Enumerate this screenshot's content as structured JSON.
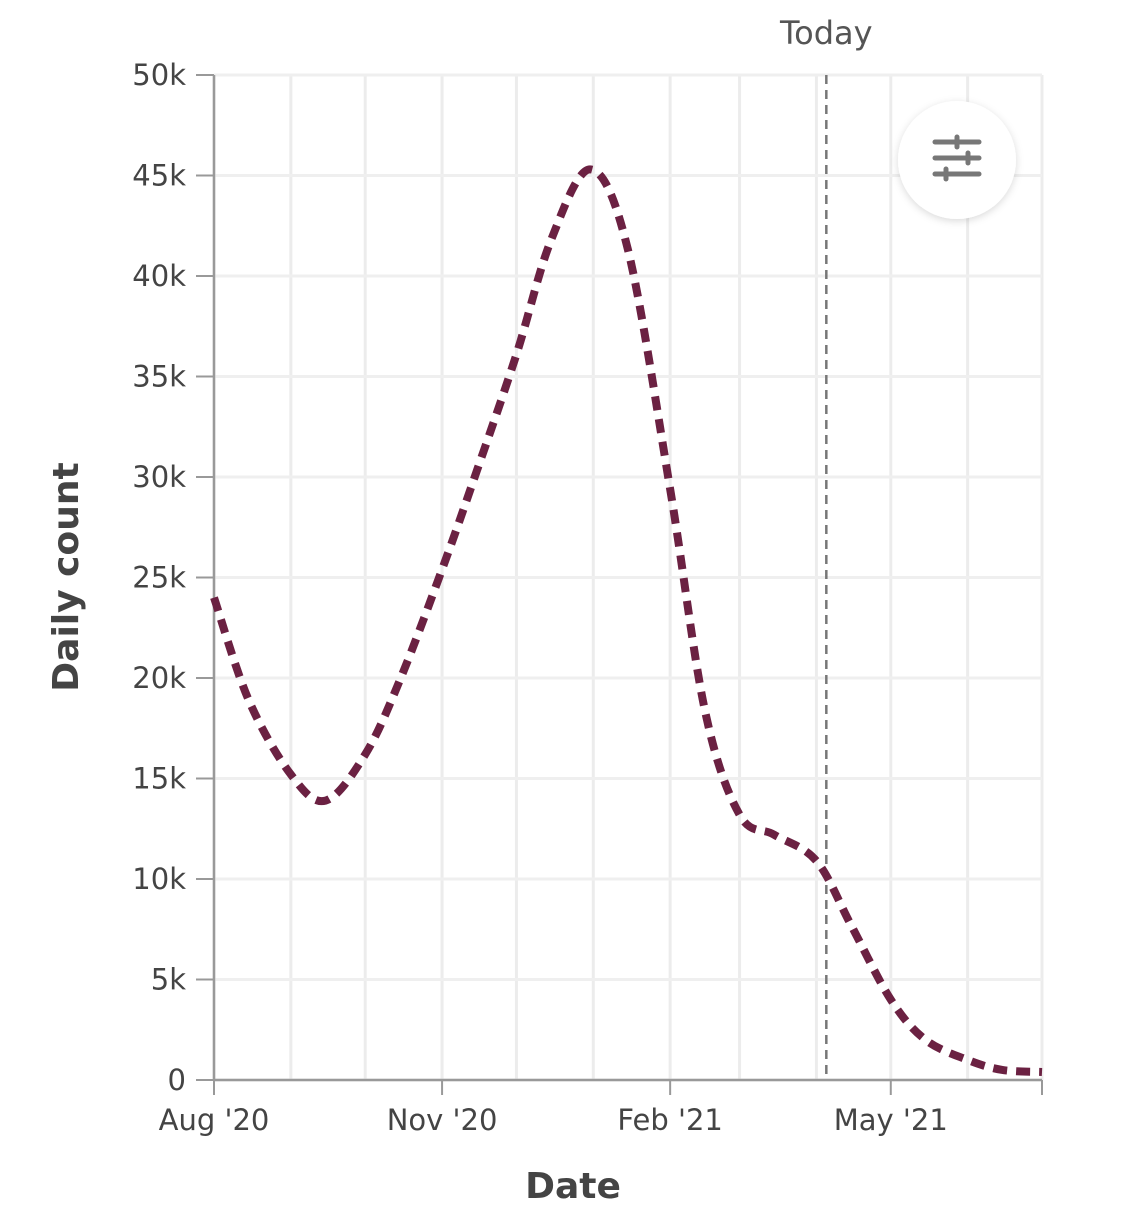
{
  "chart_data": {
    "type": "line",
    "xlabel": "Date",
    "ylabel": "Daily count",
    "xlim": [
      "2020-08-01",
      "2021-07-01"
    ],
    "ylim": [
      0,
      50000
    ],
    "grid": true,
    "y_ticks": [
      0,
      5000,
      10000,
      15000,
      20000,
      25000,
      30000,
      35000,
      40000,
      45000,
      50000
    ],
    "y_tick_labels": [
      "0",
      "5k",
      "10k",
      "15k",
      "20k",
      "25k",
      "30k",
      "35k",
      "40k",
      "45k",
      "50k"
    ],
    "x_ticks": [
      "2020-08-01",
      "2020-11-01",
      "2021-02-01",
      "2021-05-01"
    ],
    "x_tick_labels": [
      "Aug '20",
      "Nov '20",
      "Feb '21",
      "May '21"
    ],
    "line_style": "dotted",
    "line_color": "#6b2142",
    "marker": {
      "label": "Today",
      "date": "2021-04-05"
    },
    "points": [
      {
        "x": "2020-08-01",
        "y": 24000
      },
      {
        "x": "2020-08-15",
        "y": 18900
      },
      {
        "x": "2020-09-01",
        "y": 15200
      },
      {
        "x": "2020-09-15",
        "y": 13900
      },
      {
        "x": "2020-10-01",
        "y": 16200
      },
      {
        "x": "2020-10-15",
        "y": 19900
      },
      {
        "x": "2020-11-01",
        "y": 25400
      },
      {
        "x": "2020-11-15",
        "y": 30300
      },
      {
        "x": "2020-12-01",
        "y": 36100
      },
      {
        "x": "2020-12-15",
        "y": 41800
      },
      {
        "x": "2020-12-31",
        "y": 45300
      },
      {
        "x": "2021-01-15",
        "y": 41300
      },
      {
        "x": "2021-02-01",
        "y": 29400
      },
      {
        "x": "2021-02-15",
        "y": 18400
      },
      {
        "x": "2021-03-01",
        "y": 13200
      },
      {
        "x": "2021-03-15",
        "y": 12200
      },
      {
        "x": "2021-04-01",
        "y": 10900
      },
      {
        "x": "2021-04-15",
        "y": 7700
      },
      {
        "x": "2021-05-01",
        "y": 4000
      },
      {
        "x": "2021-05-15",
        "y": 2000
      },
      {
        "x": "2021-06-01",
        "y": 1000
      },
      {
        "x": "2021-06-15",
        "y": 500
      },
      {
        "x": "2021-07-01",
        "y": 400
      }
    ]
  },
  "controls": {
    "settings_icon": "sliders-icon"
  }
}
